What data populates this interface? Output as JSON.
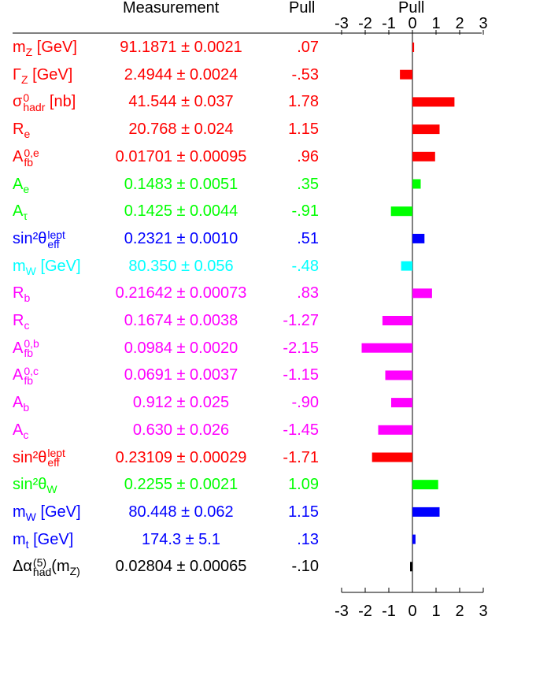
{
  "header": {
    "measurement": "Measurement",
    "pull": "Pull",
    "pull_axis": "Pull"
  },
  "chart_data": {
    "type": "bar",
    "orientation": "horizontal",
    "xlabel": "Pull",
    "xlim": [
      -3,
      3
    ],
    "ticks": [
      "-3",
      "-2",
      "-1",
      "0",
      "1",
      "2",
      "3"
    ],
    "rows": [
      {
        "label": "m_Z [GeV]",
        "measurement": "91.1871 ± 0.0021",
        "pull_text": ".07",
        "pull": 0.07,
        "color": "#ff0000"
      },
      {
        "label": "Γ_Z [GeV]",
        "measurement": "2.4944 ± 0.0024",
        "pull_text": "-.53",
        "pull": -0.53,
        "color": "#ff0000"
      },
      {
        "label": "σ^0_hadr [nb]",
        "measurement": "41.544 ± 0.037",
        "pull_text": "1.78",
        "pull": 1.78,
        "color": "#ff0000"
      },
      {
        "label": "R_e",
        "measurement": "20.768 ± 0.024",
        "pull_text": "1.15",
        "pull": 1.15,
        "color": "#ff0000"
      },
      {
        "label": "A^0,e_fb",
        "measurement": "0.01701 ± 0.00095",
        "pull_text": ".96",
        "pull": 0.96,
        "color": "#ff0000"
      },
      {
        "label": "A_e",
        "measurement": "0.1483 ± 0.0051",
        "pull_text": ".35",
        "pull": 0.35,
        "color": "#00ff00"
      },
      {
        "label": "A_τ",
        "measurement": "0.1425 ± 0.0044",
        "pull_text": "-.91",
        "pull": -0.91,
        "color": "#00ff00"
      },
      {
        "label": "sin²θ^lept_eff",
        "measurement": "0.2321 ± 0.0010",
        "pull_text": ".51",
        "pull": 0.51,
        "color": "#0000ff"
      },
      {
        "label": "m_W [GeV]",
        "measurement": "80.350 ± 0.056",
        "pull_text": "-.48",
        "pull": -0.48,
        "color": "#00ffff"
      },
      {
        "label": "R_b",
        "measurement": "0.21642 ± 0.00073",
        "pull_text": ".83",
        "pull": 0.83,
        "color": "#ff00ff"
      },
      {
        "label": "R_c",
        "measurement": "0.1674 ± 0.0038",
        "pull_text": "-1.27",
        "pull": -1.27,
        "color": "#ff00ff"
      },
      {
        "label": "A^0,b_fb",
        "measurement": "0.0984 ± 0.0020",
        "pull_text": "-2.15",
        "pull": -2.15,
        "color": "#ff00ff"
      },
      {
        "label": "A^0,c_fb",
        "measurement": "0.0691 ± 0.0037",
        "pull_text": "-1.15",
        "pull": -1.15,
        "color": "#ff00ff"
      },
      {
        "label": "A_b",
        "measurement": "0.912 ± 0.025",
        "pull_text": "-.90",
        "pull": -0.9,
        "color": "#ff00ff"
      },
      {
        "label": "A_c",
        "measurement": "0.630 ± 0.026",
        "pull_text": "-1.45",
        "pull": -1.45,
        "color": "#ff00ff"
      },
      {
        "label": "sin²θ^lept_eff",
        "measurement": "0.23109 ± 0.00029",
        "pull_text": "-1.71",
        "pull": -1.71,
        "color": "#ff0000"
      },
      {
        "label": "sin²θ_W",
        "measurement": "0.2255 ± 0.0021",
        "pull_text": "1.09",
        "pull": 1.09,
        "color": "#00ff00"
      },
      {
        "label": "m_W [GeV]",
        "measurement": "80.448 ± 0.062",
        "pull_text": "1.15",
        "pull": 1.15,
        "color": "#0000ff"
      },
      {
        "label": "m_t [GeV]",
        "measurement": "174.3 ± 5.1",
        "pull_text": ".13",
        "pull": 0.13,
        "color": "#0000ff"
      },
      {
        "label": "Δα^(5)_had(m_Z)",
        "measurement": "0.02804 ± 0.00065",
        "pull_text": "-.10",
        "pull": -0.1,
        "color": "#000000"
      }
    ]
  }
}
